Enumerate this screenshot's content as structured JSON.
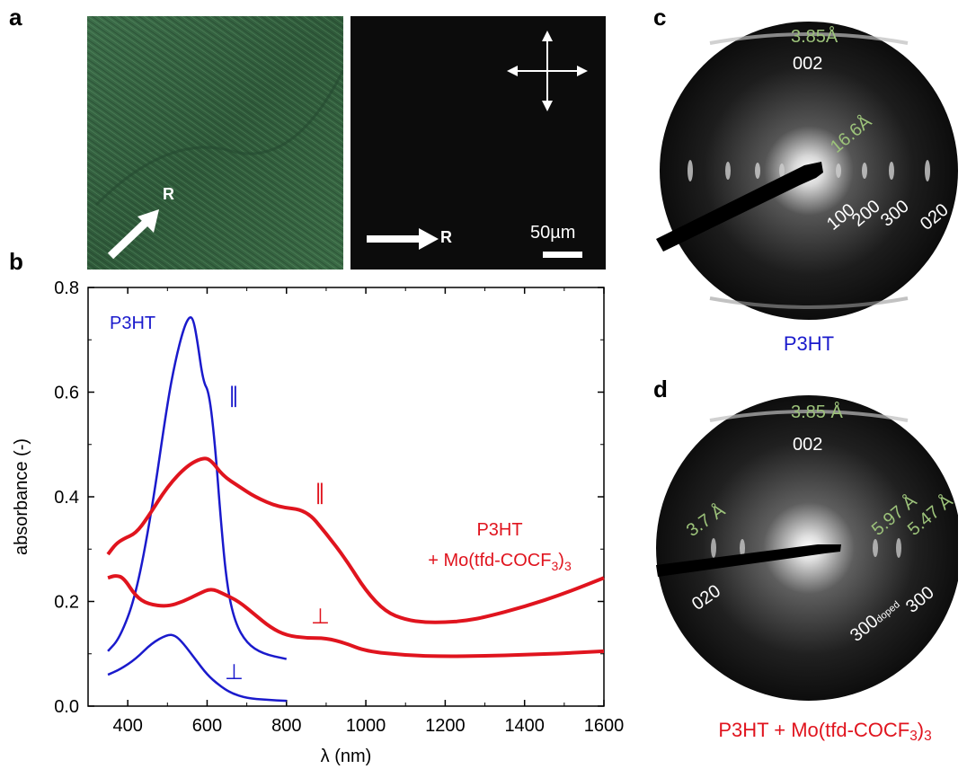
{
  "panels": {
    "a": {
      "letter": "a",
      "left_arrow_label": "R",
      "right_arrow_label": "R",
      "scale_bar_label": "50µm"
    },
    "b": {
      "letter": "b"
    },
    "c": {
      "letter": "c",
      "labels": {
        "d1": "3.85Å",
        "r002": "002",
        "d2": "16.6Å",
        "r100": "100",
        "r200": "200",
        "r300": "300",
        "r020": "020"
      },
      "caption": "P3HT"
    },
    "d": {
      "letter": "d",
      "labels": {
        "d1": "3.85 Å",
        "r002": "002",
        "d2": "3.7 Å",
        "d3": "5.97 Å",
        "d4": "5.47 Å",
        "r020": "020",
        "r300doped_main": "300",
        "r300doped_sub": "doped",
        "r300": "300"
      },
      "caption_main": "P3HT + Mo(tfd-COCF",
      "caption_sub": "3",
      "caption_end": ")",
      "caption_sub2": "3"
    }
  },
  "colors": {
    "blue": "#1a1acc",
    "red": "#e0141e",
    "green_label": "#9cc27a"
  },
  "chart_data": {
    "type": "line",
    "xlabel": "λ (nm)",
    "ylabel": "absorbance (-)",
    "xlim": [
      300,
      1600
    ],
    "ylim": [
      0,
      0.8
    ],
    "xticks": [
      "400",
      "600",
      "800",
      "1000",
      "1200",
      "1400",
      "1600"
    ],
    "yticks": [
      "0.0",
      "0.2",
      "0.4",
      "0.6",
      "0.8"
    ],
    "annotations": {
      "p3ht": "P3HT",
      "par_blue": "∥",
      "perp_blue": "⊥",
      "par_red": "∥",
      "perp_red": "⊥",
      "doped_line1": "P3HT",
      "doped_line2_main": "+ Mo(tfd-COCF",
      "doped_line2_sub": "3",
      "doped_line2_end": ")",
      "doped_line2_sub2": "3"
    },
    "series": [
      {
        "color": "#1a1acc",
        "x": [
          350,
          380,
          420,
          460,
          500,
          520,
          540,
          555,
          565,
          575,
          590,
          605,
          620,
          635,
          650,
          670,
          700,
          740,
          800
        ],
        "y": [
          0.105,
          0.13,
          0.21,
          0.37,
          0.58,
          0.66,
          0.72,
          0.745,
          0.74,
          0.7,
          0.62,
          0.6,
          0.5,
          0.35,
          0.23,
          0.16,
          0.12,
          0.1,
          0.09
        ]
      },
      {
        "color": "#1a1acc",
        "x": [
          350,
          380,
          420,
          460,
          500,
          520,
          540,
          570,
          600,
          630,
          660,
          700,
          750,
          800
        ],
        "y": [
          0.06,
          0.07,
          0.09,
          0.12,
          0.137,
          0.135,
          0.12,
          0.09,
          0.06,
          0.04,
          0.025,
          0.015,
          0.012,
          0.01
        ]
      },
      {
        "color": "#e0141e",
        "x": [
          350,
          370,
          390,
          420,
          450,
          500,
          550,
          590,
          610,
          640,
          680,
          720,
          780,
          850,
          900,
          950,
          1000,
          1050,
          1100,
          1150,
          1200,
          1250,
          1300,
          1400,
          1500,
          1600
        ],
        "y": [
          0.29,
          0.31,
          0.32,
          0.33,
          0.36,
          0.42,
          0.46,
          0.475,
          0.47,
          0.44,
          0.42,
          0.4,
          0.38,
          0.375,
          0.33,
          0.28,
          0.22,
          0.18,
          0.165,
          0.16,
          0.16,
          0.163,
          0.17,
          0.19,
          0.215,
          0.245
        ]
      },
      {
        "color": "#e0141e",
        "x": [
          350,
          370,
          390,
          420,
          450,
          500,
          540,
          580,
          610,
          640,
          680,
          720,
          760,
          800,
          850,
          900,
          950,
          1000,
          1100,
          1200,
          1300,
          1400,
          1500,
          1600
        ],
        "y": [
          0.245,
          0.25,
          0.245,
          0.21,
          0.195,
          0.19,
          0.2,
          0.215,
          0.225,
          0.215,
          0.2,
          0.175,
          0.15,
          0.135,
          0.13,
          0.13,
          0.12,
          0.105,
          0.097,
          0.095,
          0.096,
          0.098,
          0.101,
          0.105
        ]
      }
    ]
  }
}
